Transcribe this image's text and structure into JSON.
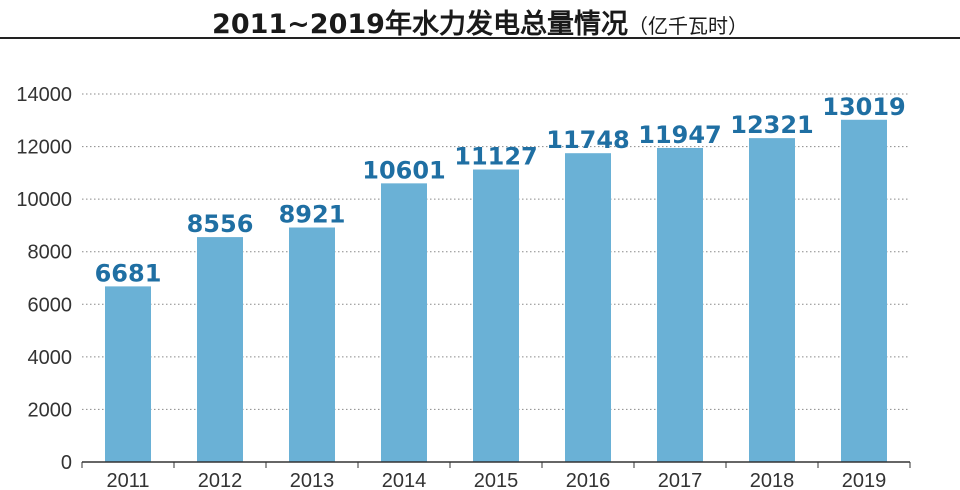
{
  "title": {
    "main": "2011~2019年水力发电总量情况",
    "unit": "（亿千瓦时）"
  },
  "colors": {
    "bar": "#6ab1d6",
    "label": "#1f6fa3",
    "grid": "#8a8a8a",
    "axis": "#333333"
  },
  "chart_data": {
    "type": "bar",
    "title": "2011~2019年水力发电总量情况（亿千瓦时）",
    "xlabel": "",
    "ylabel": "",
    "categories": [
      "2011",
      "2012",
      "2013",
      "2014",
      "2015",
      "2016",
      "2017",
      "2018",
      "2019"
    ],
    "values": [
      6681,
      8556,
      8921,
      10601,
      11127,
      11748,
      11947,
      12321,
      13019
    ],
    "ylim": [
      0,
      14000
    ],
    "yticks": [
      0,
      2000,
      4000,
      6000,
      8000,
      10000,
      12000,
      14000
    ],
    "grid": "horizontal-dotted",
    "legend": "none",
    "data_labels": true
  }
}
